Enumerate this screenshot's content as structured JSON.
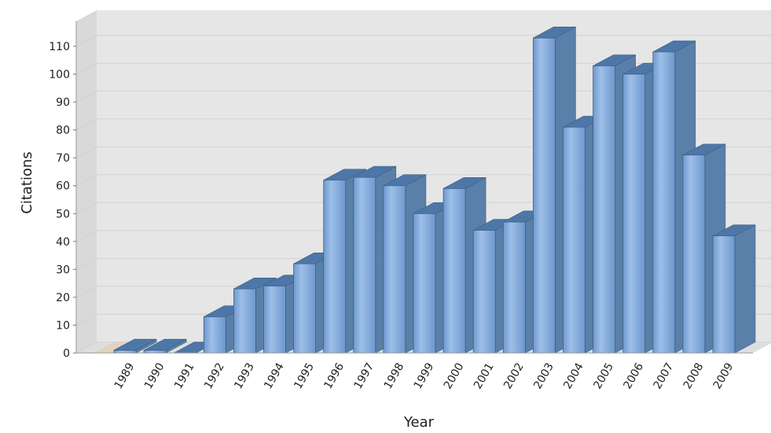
{
  "chart_data": {
    "type": "bar",
    "title": "",
    "xlabel": "Year",
    "ylabel": "Citations",
    "categories": [
      "1989",
      "1990",
      "1991",
      "1992",
      "1993",
      "1994",
      "1995",
      "1996",
      "1997",
      "1998",
      "1999",
      "2000",
      "2001",
      "2002",
      "2003",
      "2004",
      "2005",
      "2006",
      "2007",
      "2008",
      "2009"
    ],
    "values": [
      1,
      1,
      0,
      13,
      23,
      24,
      32,
      62,
      63,
      60,
      50,
      59,
      44,
      47,
      113,
      81,
      103,
      100,
      108,
      71,
      42
    ],
    "ylim": [
      0,
      110
    ],
    "yticks": [
      "0",
      "10",
      "20",
      "30",
      "40",
      "50",
      "60",
      "70",
      "80",
      "90",
      "100",
      "110"
    ],
    "grid": true,
    "legend": "none",
    "colors": {
      "bar_front": "#7ba4d8",
      "bar_side": "#5a7fa8",
      "bar_top": "#4d77a8",
      "plot_back": "#e6e6e6",
      "plot_floor": "#dedede",
      "grid": "#d2d2d2"
    }
  }
}
